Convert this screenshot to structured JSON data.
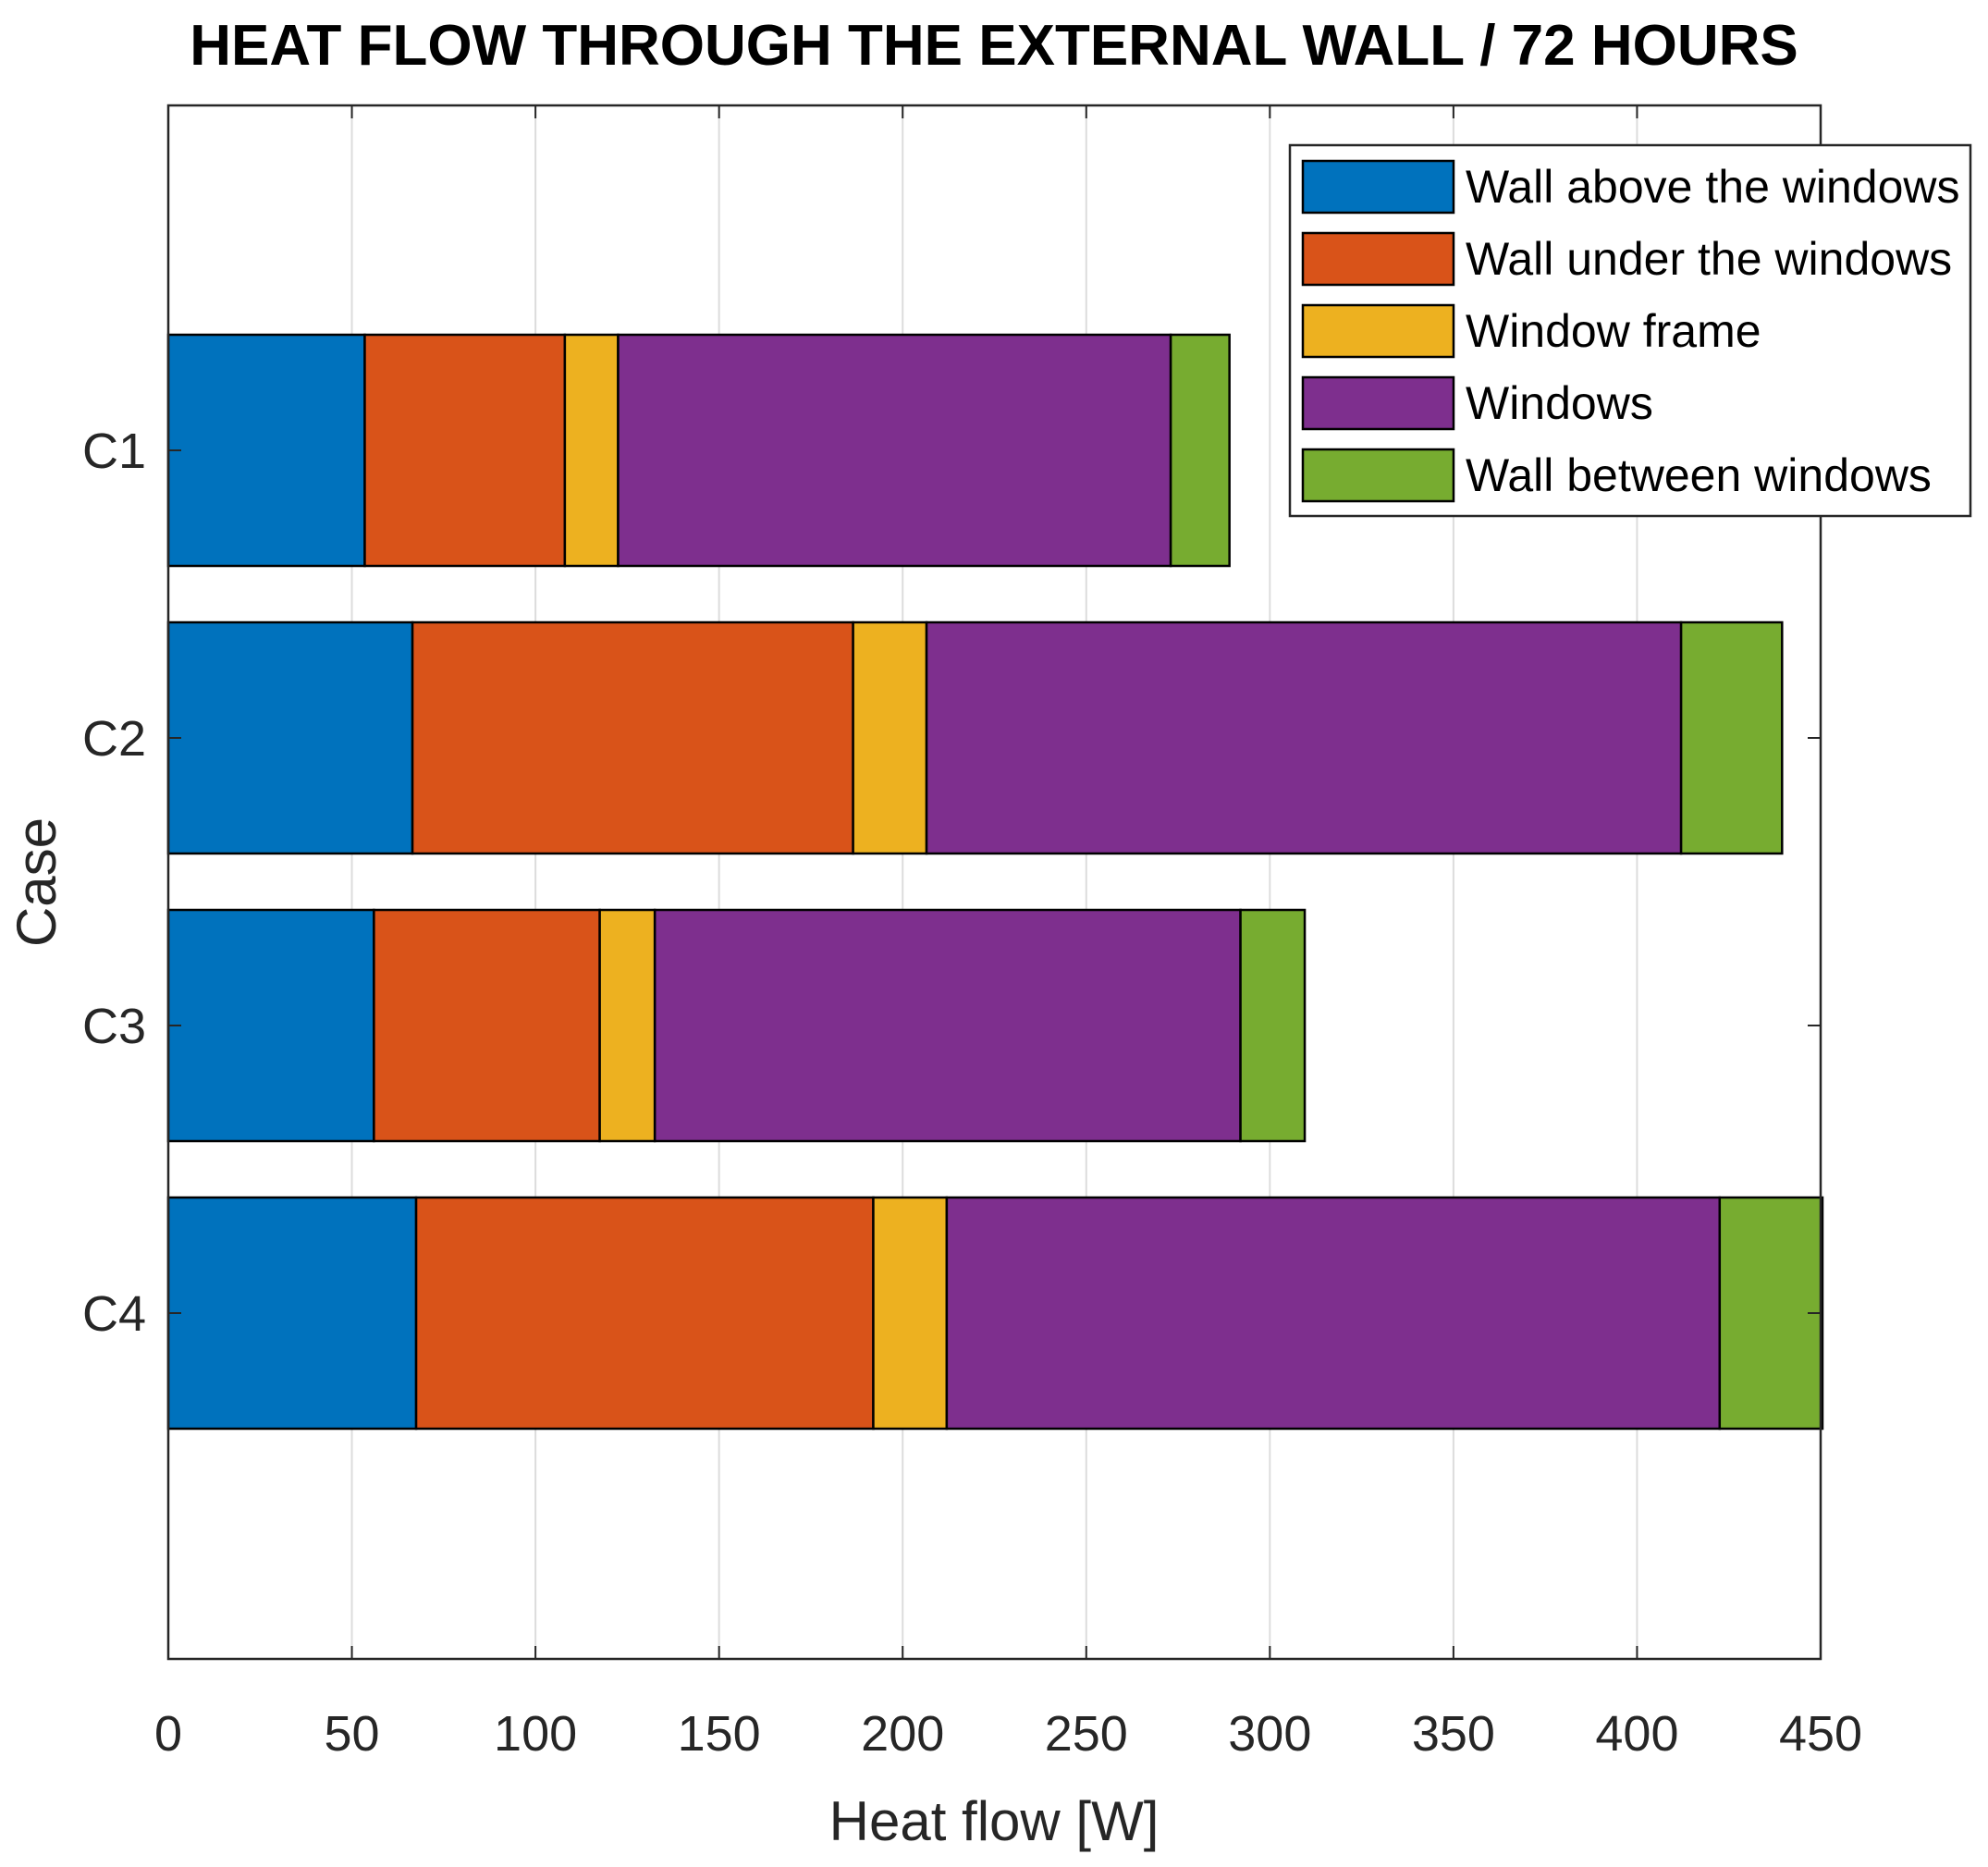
{
  "chart_data": {
    "type": "bar",
    "orientation": "horizontal",
    "stacked": true,
    "title": "HEAT FLOW THROUGH THE EXTERNAL WALL  / 72 HOURS",
    "xlabel": "Heat flow [W]",
    "ylabel": "Case",
    "xlim": [
      0,
      450
    ],
    "xticks": [
      0,
      50,
      100,
      150,
      200,
      250,
      300,
      350,
      400,
      450
    ],
    "categories": [
      "C1",
      "C2",
      "C3",
      "C4"
    ],
    "series": [
      {
        "name": "Wall above the windows",
        "color": "#0072BD",
        "values": [
          53.5,
          66.5,
          56,
          67.5
        ]
      },
      {
        "name": "Wall under the windows",
        "color": "#D95319",
        "values": [
          54.5,
          120,
          61.5,
          124.5
        ]
      },
      {
        "name": "Window frame",
        "color": "#EDB120",
        "values": [
          14.5,
          20,
          15,
          20
        ]
      },
      {
        "name": "Windows",
        "color": "#7E2F8E",
        "values": [
          150.5,
          205.5,
          159.5,
          210.5
        ]
      },
      {
        "name": "Wall between windows",
        "color": "#77AC30",
        "values": [
          16,
          27.5,
          17.5,
          28
        ]
      }
    ],
    "grid": {
      "x": true,
      "y": false
    },
    "legend_position": "top-right"
  }
}
